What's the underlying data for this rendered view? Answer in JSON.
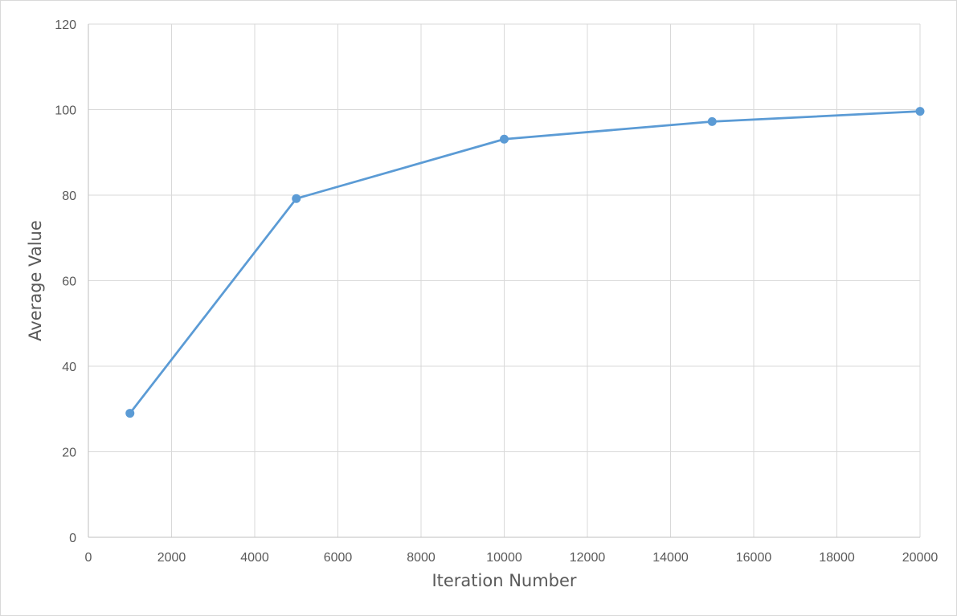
{
  "chart_data": {
    "type": "scatter",
    "mode": "lines+markers",
    "title": "",
    "xlabel": "Iteration Number",
    "ylabel": "Average Value",
    "xlim": [
      0,
      20000
    ],
    "ylim": [
      0,
      120
    ],
    "xticks": [
      0,
      2000,
      4000,
      6000,
      8000,
      10000,
      12000,
      14000,
      16000,
      18000,
      20000
    ],
    "yticks": [
      0,
      20,
      40,
      60,
      80,
      100,
      120
    ],
    "grid": true,
    "legend": "none",
    "series": [
      {
        "color": "#5b9bd5",
        "points": [
          {
            "x": 1000,
            "y": 29
          },
          {
            "x": 5000,
            "y": 79.2
          },
          {
            "x": 10000,
            "y": 93.1
          },
          {
            "x": 15000,
            "y": 97.2
          },
          {
            "x": 20000,
            "y": 99.6
          }
        ]
      }
    ]
  }
}
